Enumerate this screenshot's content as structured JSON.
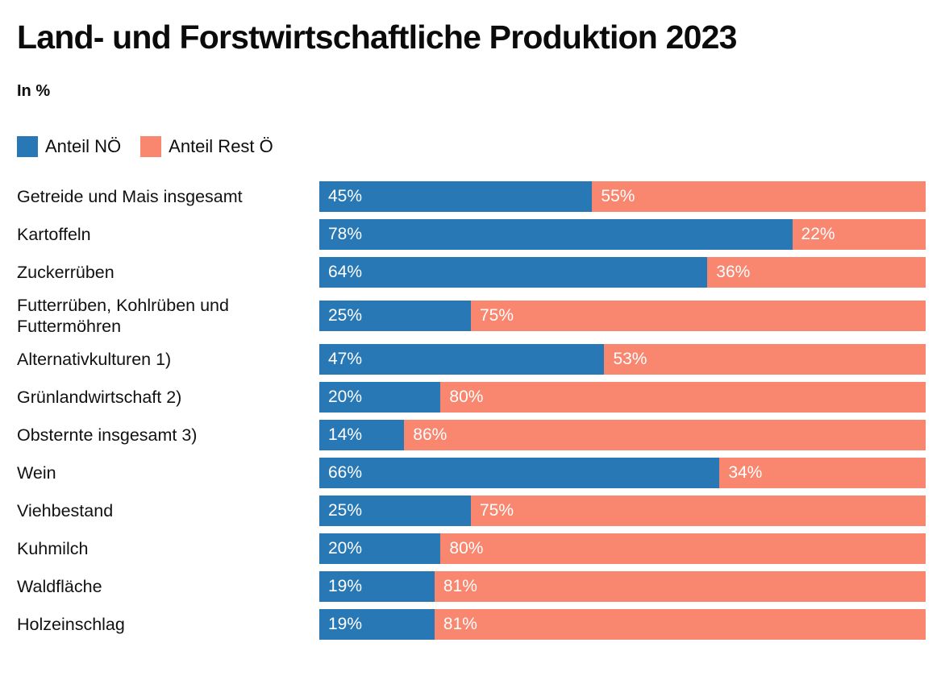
{
  "page": {
    "title": "Land- und Forstwirtschaftliche Produktion 2023",
    "subtitle": "In %"
  },
  "colors": {
    "noe_blue": "#2878B5",
    "rest_salmon": "#F9866F",
    "bar_label_text": "#FFFFFF",
    "heading_text": "#0B0B0B",
    "background": "#FFFFFF"
  },
  "legend": {
    "items": [
      {
        "label": "Anteil NÖ",
        "color": "#2878B5"
      },
      {
        "label": "Anteil Rest Ö",
        "color": "#F9866F"
      }
    ]
  },
  "chart_data": {
    "type": "bar",
    "orientation": "horizontal",
    "stacked": true,
    "unit": "%",
    "title": "Land- und Forstwirtschaftliche Produktion 2023",
    "subtitle": "In %",
    "grid": false,
    "legend_position": "top-left",
    "xlim": [
      0,
      100
    ],
    "value_label_format": "{value}%",
    "categories": [
      "Getreide und Mais insgesamt",
      "Kartoffeln",
      "Zuckerrüben",
      "Futterrüben, Kohlrüben und Futtermöhren",
      "Alternativkulturen 1)",
      "Grünlandwirtschaft 2)",
      "Obsternte insgesamt 3)",
      "Wein",
      "Viehbestand",
      "Kuhmilch",
      "Waldfläche",
      "Holzeinschlag"
    ],
    "series": [
      {
        "name": "Anteil NÖ",
        "color": "#2878B5",
        "values": [
          45,
          78,
          64,
          25,
          47,
          20,
          14,
          66,
          25,
          20,
          19,
          19
        ]
      },
      {
        "name": "Anteil Rest Ö",
        "color": "#F9866F",
        "values": [
          55,
          22,
          36,
          75,
          53,
          80,
          86,
          34,
          75,
          80,
          81,
          81
        ]
      }
    ]
  }
}
